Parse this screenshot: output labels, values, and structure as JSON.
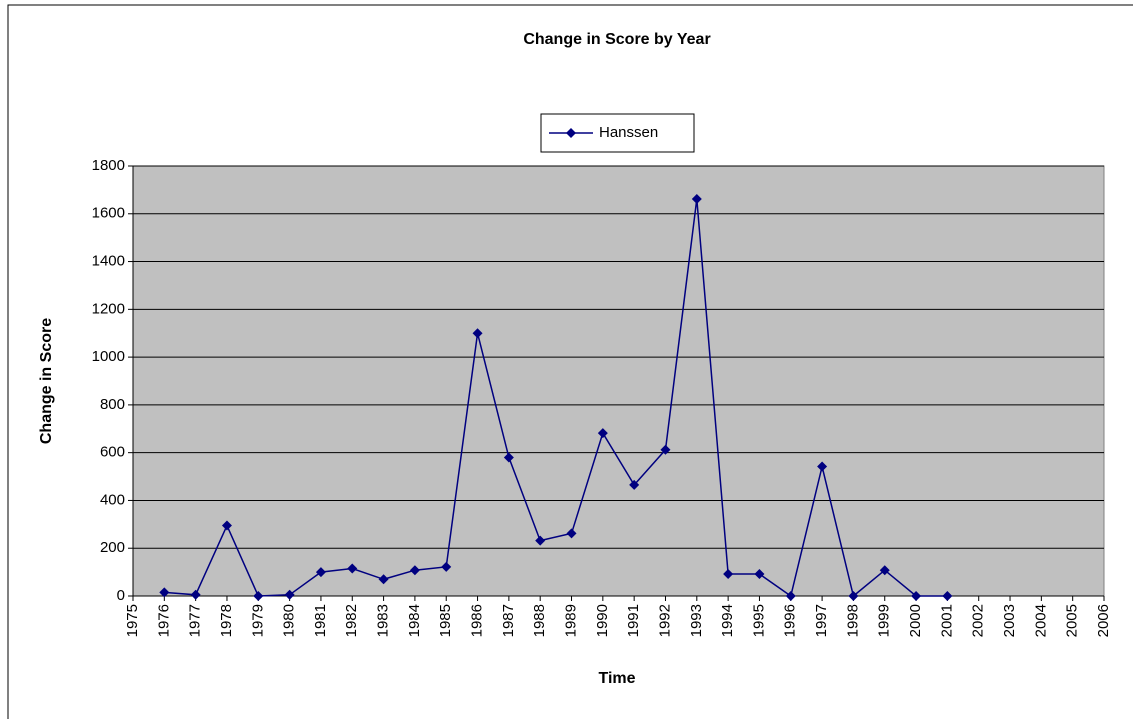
{
  "chart_data": {
    "type": "line",
    "title": "Change in Score by Year",
    "x_label": "Time",
    "y_label": "Change in Score",
    "categories": [
      "1975",
      "1976",
      "1977",
      "1978",
      "1979",
      "1980",
      "1981",
      "1982",
      "1983",
      "1984",
      "1985",
      "1986",
      "1987",
      "1988",
      "1989",
      "1990",
      "1991",
      "1992",
      "1993",
      "1994",
      "1995",
      "1996",
      "1997",
      "1998",
      "1999",
      "2000",
      "2001",
      "2002",
      "2003",
      "2004",
      "2005",
      "2006"
    ],
    "series": [
      {
        "name": "Hanssen",
        "color": "#000080",
        "values": [
          null,
          15,
          5,
          295,
          0,
          5,
          100,
          115,
          70,
          108,
          122,
          1100,
          580,
          232,
          262,
          682,
          465,
          612,
          1662,
          92,
          92,
          0,
          542,
          0,
          108,
          0,
          0,
          null,
          null,
          null,
          null,
          null
        ]
      }
    ],
    "ylim": [
      0,
      1800
    ],
    "yticks": [
      0,
      200,
      400,
      600,
      800,
      1000,
      1200,
      1400,
      1600,
      1800
    ],
    "grid": true,
    "legend": "top",
    "plot_background": "#c0c0c0"
  }
}
